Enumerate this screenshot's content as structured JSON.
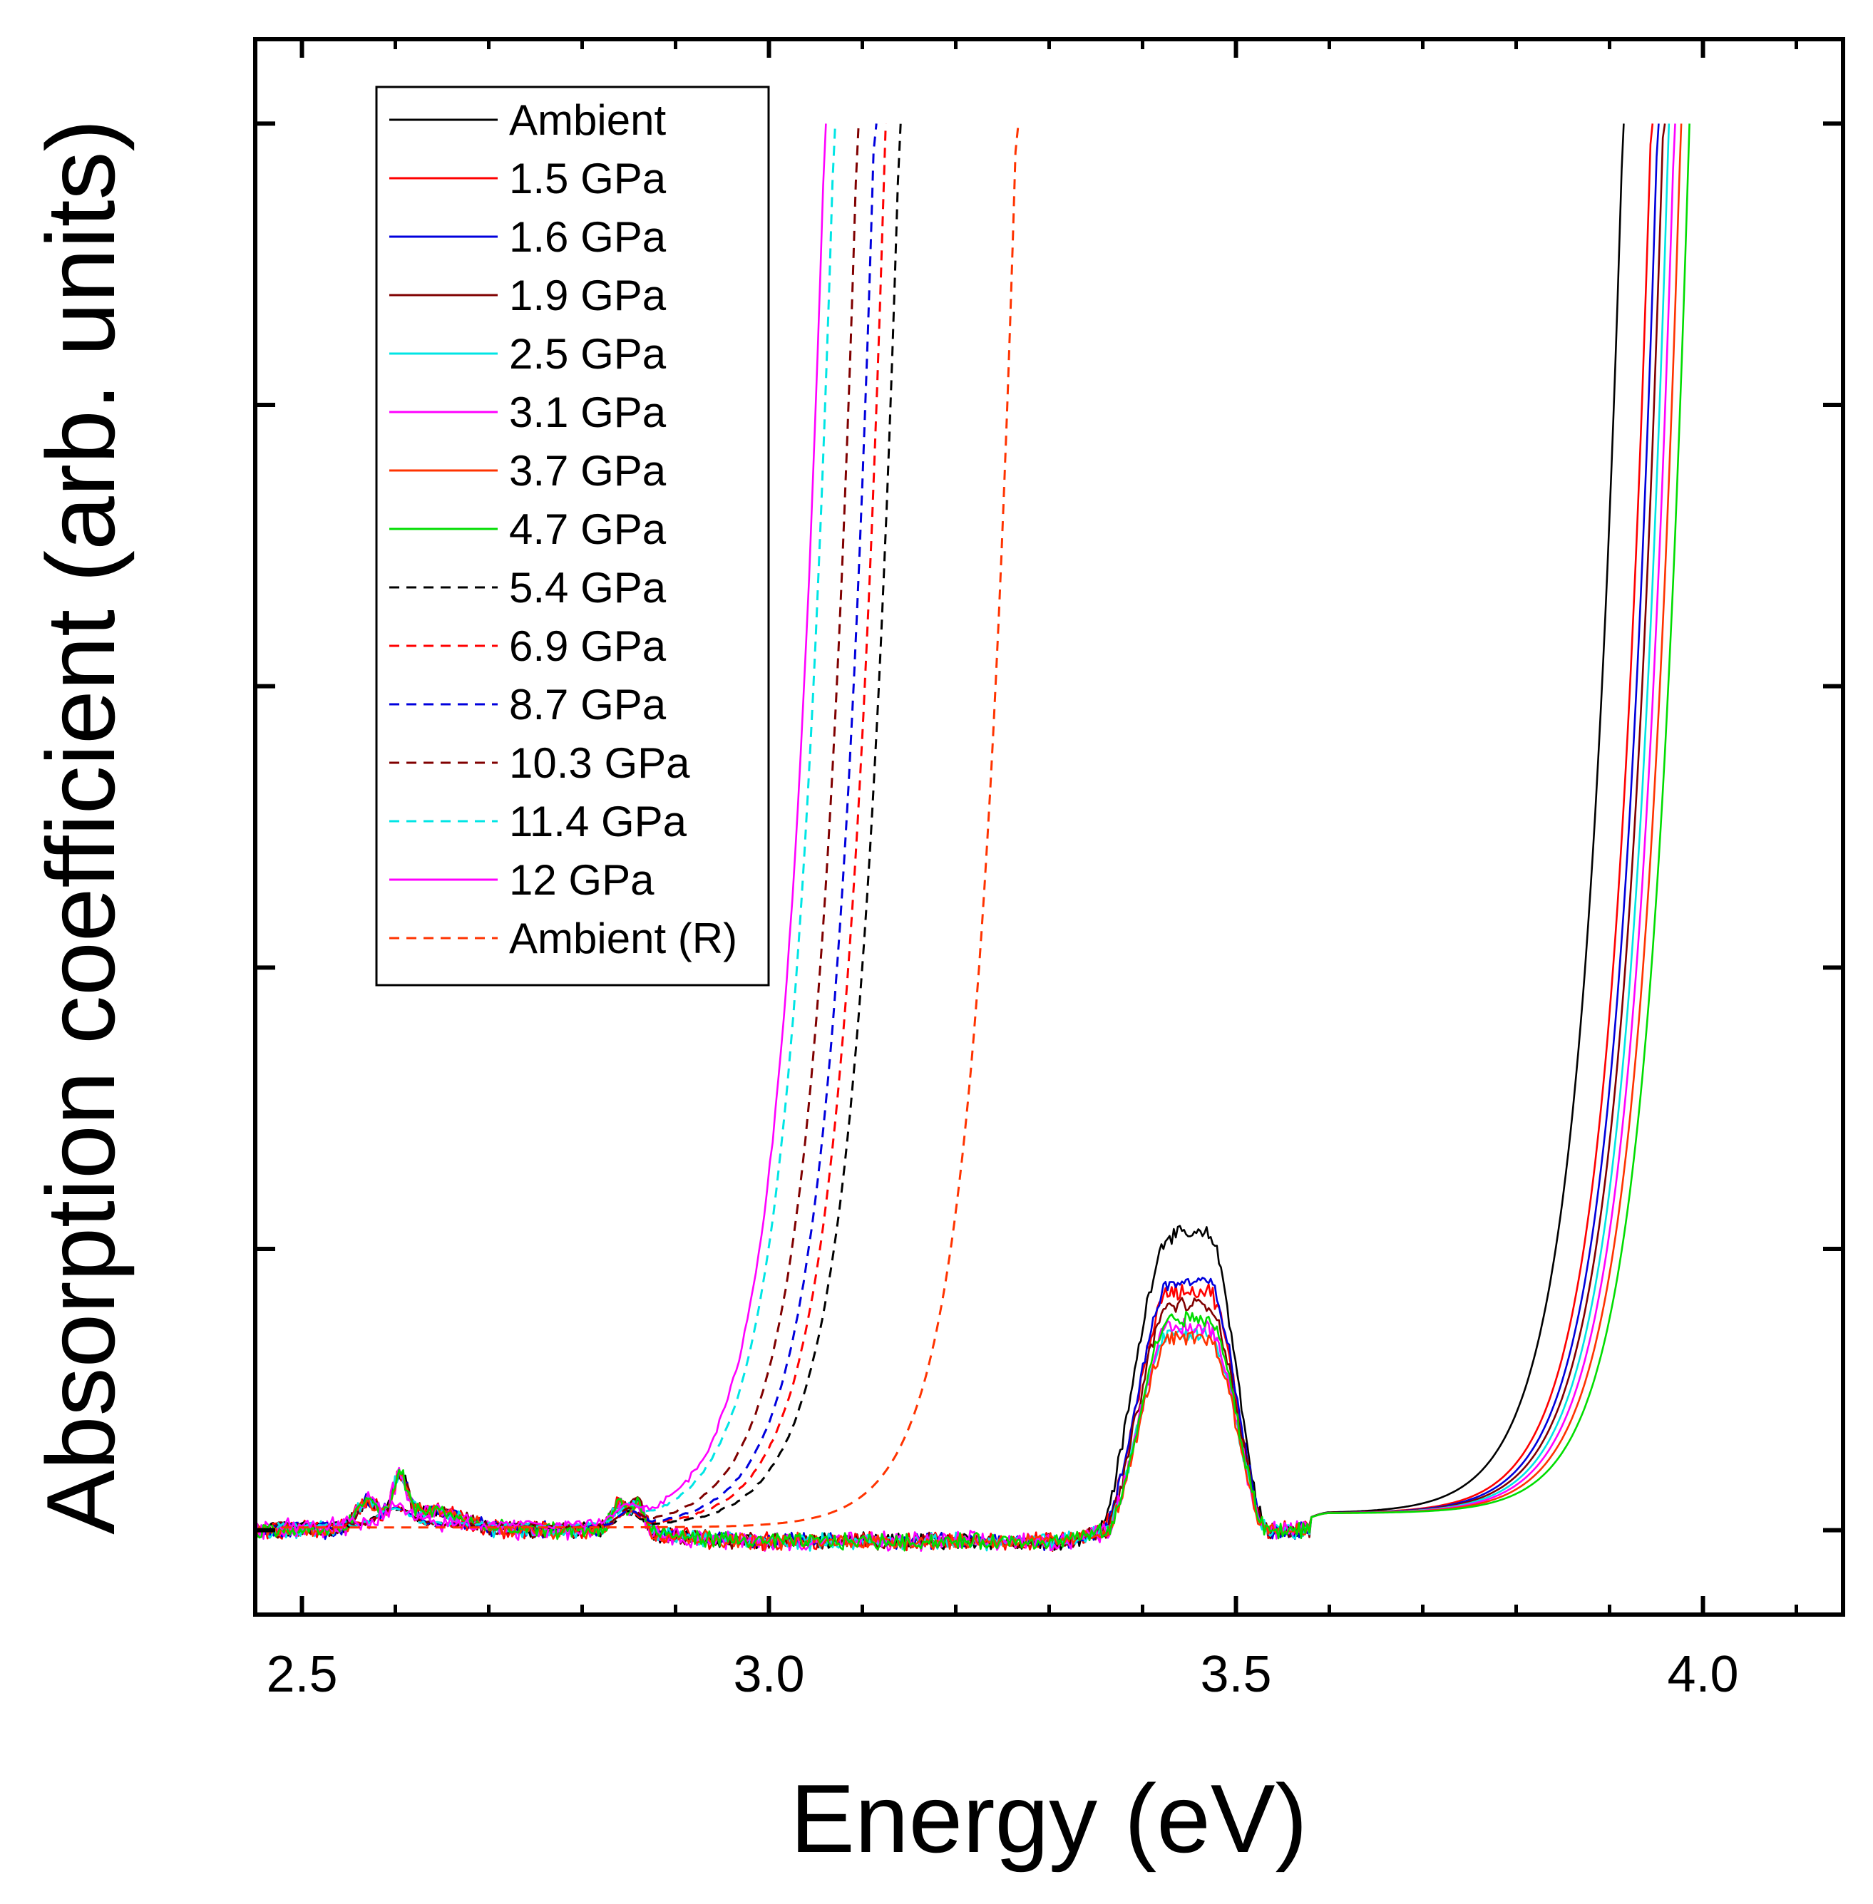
{
  "chart_data": {
    "type": "line",
    "xlabel": "Energy (eV)",
    "ylabel": "Absorption coefficient (arb. units)",
    "xlim": [
      2.45,
      4.15
    ],
    "ylim": [
      -0.3,
      5.3
    ],
    "x_ticks": [
      2.5,
      3.0,
      3.5,
      4.0
    ],
    "x_tick_labels": [
      "2.5",
      "3.0",
      "3.5",
      "4.0"
    ],
    "y_ticks": [
      0,
      1,
      2,
      3,
      4,
      5
    ],
    "y_tick_labels": [],
    "grid": false,
    "legend_position": "top-left",
    "series": [
      {
        "name": "Ambient",
        "color": "#000000",
        "dash": false,
        "edge": 3.845,
        "edge_end": 4.025,
        "peak": 1.05,
        "noise": 0.022
      },
      {
        "name": "1.5 GPa",
        "color": "#ff0000",
        "dash": false,
        "edge": 3.875,
        "edge_end": 4.055,
        "peak": 0.85,
        "noise": 0.025
      },
      {
        "name": "1.6 GPa",
        "color": "#0000dd",
        "dash": false,
        "edge": 3.882,
        "edge_end": 4.062,
        "peak": 0.88,
        "noise": 0.022
      },
      {
        "name": "1.9 GPa",
        "color": "#800000",
        "dash": false,
        "edge": 3.888,
        "edge_end": 4.068,
        "peak": 0.8,
        "noise": 0.022
      },
      {
        "name": "2.5 GPa",
        "color": "#00e5e5",
        "dash": false,
        "edge": 3.894,
        "edge_end": 4.074,
        "peak": 0.7,
        "noise": 0.022
      },
      {
        "name": "3.1 GPa",
        "color": "#ff00ff",
        "dash": false,
        "edge": 3.9,
        "edge_end": 4.08,
        "peak": 0.72,
        "noise": 0.028
      },
      {
        "name": "3.7 GPa",
        "color": "#ff3300",
        "dash": false,
        "edge": 3.907,
        "edge_end": 4.087,
        "peak": 0.68,
        "noise": 0.022
      },
      {
        "name": "4.7 GPa",
        "color": "#00dd00",
        "dash": false,
        "edge": 3.916,
        "edge_end": 4.096,
        "peak": 0.75,
        "noise": 0.022
      },
      {
        "name": "5.4 GPa",
        "color": "#000000",
        "dash": true,
        "edge": 3.07,
        "edge_end": 3.385
      },
      {
        "name": "6.9 GPa",
        "color": "#ff0000",
        "dash": true,
        "edge": 3.055,
        "edge_end": 3.37
      },
      {
        "name": "8.7 GPa",
        "color": "#0000dd",
        "dash": true,
        "edge": 3.043,
        "edge_end": 3.358
      },
      {
        "name": "10.3 GPa",
        "color": "#800000",
        "dash": true,
        "edge": 3.025,
        "edge_end": 3.34
      },
      {
        "name": "11.4 GPa",
        "color": "#00e5e5",
        "dash": true,
        "edge": 3.0,
        "edge_end": 3.315
      },
      {
        "name": "12 GPa",
        "color": "#ff00ff",
        "dash": false,
        "edge": 2.99,
        "edge_end": 3.305
      },
      {
        "name": "Ambient (R)",
        "color": "#ff3300",
        "dash": true,
        "edge": 3.195,
        "edge_end": 3.51
      }
    ]
  }
}
